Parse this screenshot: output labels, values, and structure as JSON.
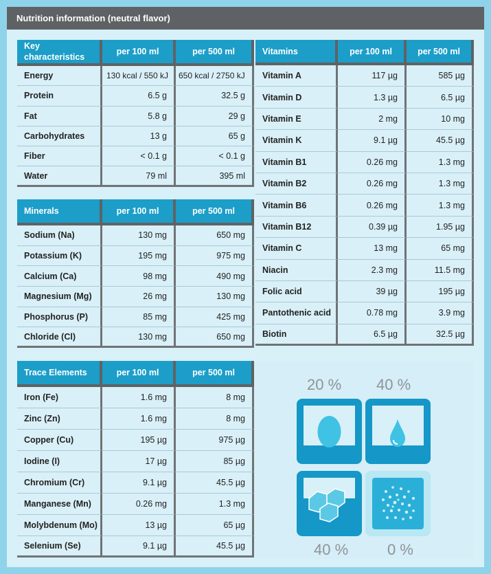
{
  "header": {
    "title": "Nutrition information (neutral flavor)"
  },
  "key_characteristics": {
    "head": [
      "Key characteristics",
      "per 100 ml",
      "per 500 ml"
    ],
    "rows": [
      [
        "Energy",
        "130 kcal / 550 kJ",
        "650 kcal / 2750 kJ"
      ],
      [
        "Protein",
        "6.5 g",
        "32.5 g"
      ],
      [
        "Fat",
        "5.8 g",
        "29 g"
      ],
      [
        "Carbohydrates",
        "13 g",
        "65 g"
      ],
      [
        "Fiber",
        "< 0.1 g",
        "< 0.1 g"
      ],
      [
        "Water",
        "79 ml",
        "395 ml"
      ]
    ]
  },
  "minerals": {
    "head": [
      "Minerals",
      "per 100 ml",
      "per 500 ml"
    ],
    "rows": [
      [
        "Sodium (Na)",
        "130 mg",
        "650 mg"
      ],
      [
        "Potassium (K)",
        "195 mg",
        "975 mg"
      ],
      [
        "Calcium (Ca)",
        "98 mg",
        "490 mg"
      ],
      [
        "Magnesium (Mg)",
        "26 mg",
        "130 mg"
      ],
      [
        "Phosphorus (P)",
        "85 mg",
        "425 mg"
      ],
      [
        "Chloride (Cl)",
        "130 mg",
        "650 mg"
      ]
    ]
  },
  "trace_elements": {
    "head": [
      "Trace Elements",
      "per 100 ml",
      "per 500 ml"
    ],
    "rows": [
      [
        "Iron (Fe)",
        "1.6 mg",
        "8 mg"
      ],
      [
        "Zinc (Zn)",
        "1.6 mg",
        "8 mg"
      ],
      [
        "Copper (Cu)",
        "195 µg",
        "975 µg"
      ],
      [
        "Iodine (I)",
        "17 µg",
        "85 µg"
      ],
      [
        "Chromium (Cr)",
        "9.1 µg",
        "45.5 µg"
      ],
      [
        "Manganese (Mn)",
        "0.26 mg",
        "1.3 mg"
      ],
      [
        "Molybdenum (Mo)",
        "13 µg",
        "65 µg"
      ],
      [
        "Selenium (Se)",
        "9.1 µg",
        "45.5 µg"
      ]
    ]
  },
  "vitamins": {
    "head": [
      "Vitamins",
      "per 100 ml",
      "per 500 ml"
    ],
    "rows": [
      [
        "Vitamin A",
        "117 µg",
        "585 µg"
      ],
      [
        "Vitamin D",
        "1.3 µg",
        "6.5 µg"
      ],
      [
        "Vitamin E",
        "2 mg",
        "10 mg"
      ],
      [
        "Vitamin K",
        "9.1 µg",
        "45.5 µg"
      ],
      [
        "Vitamin B1",
        "0.26 mg",
        "1.3 mg"
      ],
      [
        "Vitamin B2",
        "0.26 mg",
        "1.3 mg"
      ],
      [
        "Vitamin B6",
        "0.26 mg",
        "1.3 mg"
      ],
      [
        "Vitamin B12",
        "0.39 µg",
        "1.95 µg"
      ],
      [
        "Vitamin C",
        "13 mg",
        "65 mg"
      ],
      [
        "Niacin",
        "2.3 mg",
        "11.5 mg"
      ],
      [
        "Folic acid",
        "39 µg",
        "195 µg"
      ],
      [
        "Pantothenic acid",
        "0.78 mg",
        "3.9 mg"
      ],
      [
        "Biotin",
        "6.5 µg",
        "32.5 µg"
      ]
    ]
  },
  "energy_split": {
    "protein": {
      "percent": "20 %",
      "icon": "egg-icon"
    },
    "fat": {
      "percent": "40 %",
      "icon": "drop-icon"
    },
    "carbohydrates": {
      "percent": "40 %",
      "icon": "sugar-cubes-icon"
    },
    "fiber": {
      "percent": "0 %",
      "icon": "fiber-icon"
    }
  },
  "colors": {
    "accent": "#1c9ec9",
    "header": "#5e6264",
    "background": "#8fd3ea"
  }
}
